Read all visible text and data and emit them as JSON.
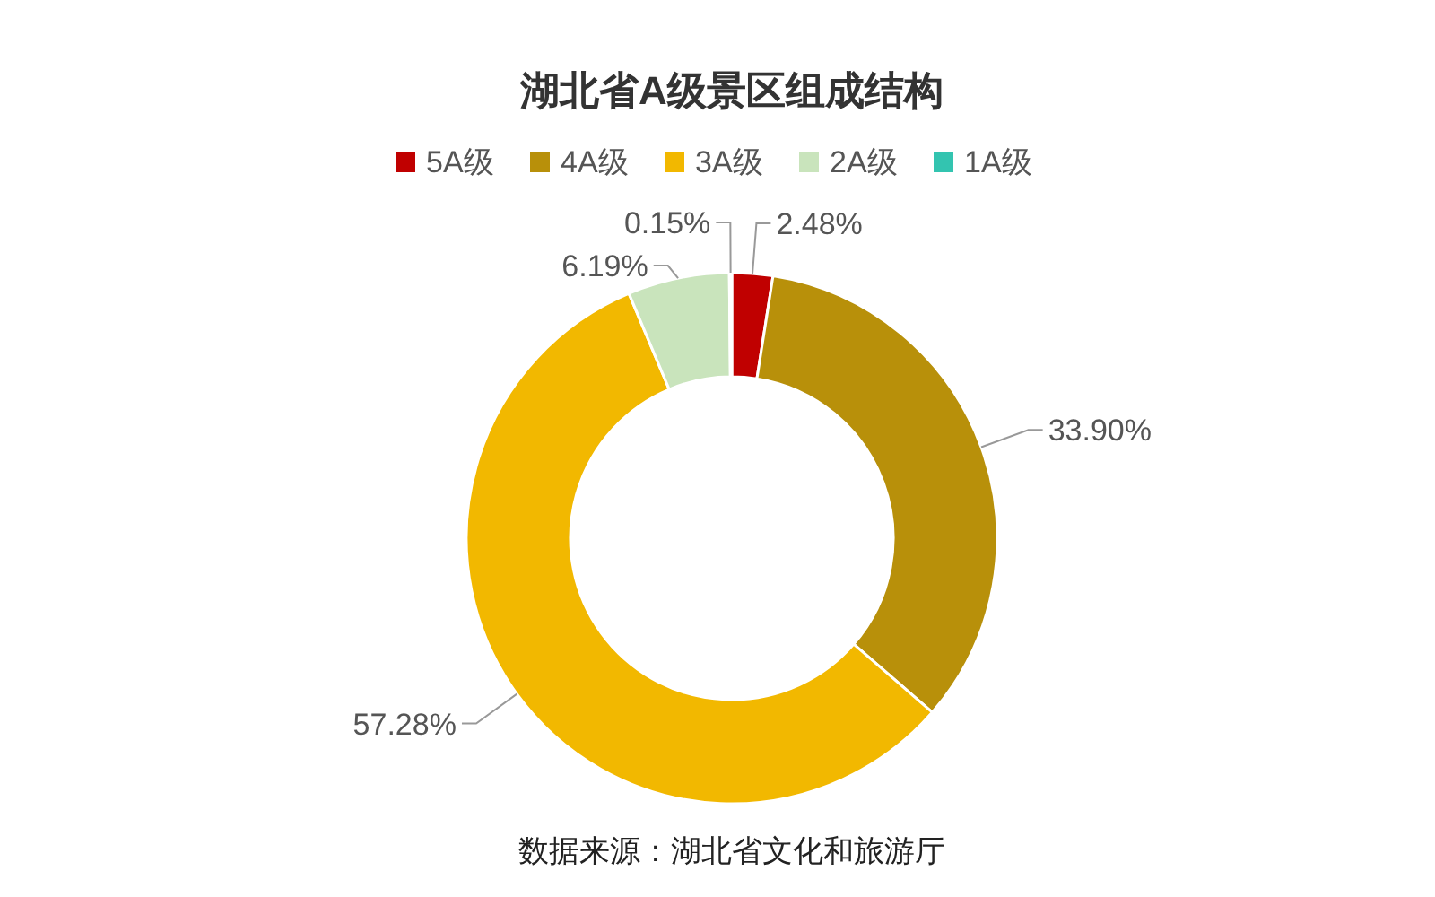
{
  "chart_data": {
    "type": "donut",
    "title": "湖北省A级景区组成结构",
    "categories": [
      "5A级",
      "4A级",
      "3A级",
      "2A级",
      "1A级"
    ],
    "values": [
      2.48,
      33.9,
      57.28,
      6.19,
      0.15
    ],
    "colors": [
      "#c00000",
      "#b8900a",
      "#f2b800",
      "#c9e4bc",
      "#33c4b0"
    ],
    "value_labels": [
      "2.48%",
      "33.90%",
      "57.28%",
      "6.19%",
      "0.15%"
    ],
    "legend": "top",
    "annotations": [
      "数据来源：湖北省文化和旅游厅"
    ]
  }
}
